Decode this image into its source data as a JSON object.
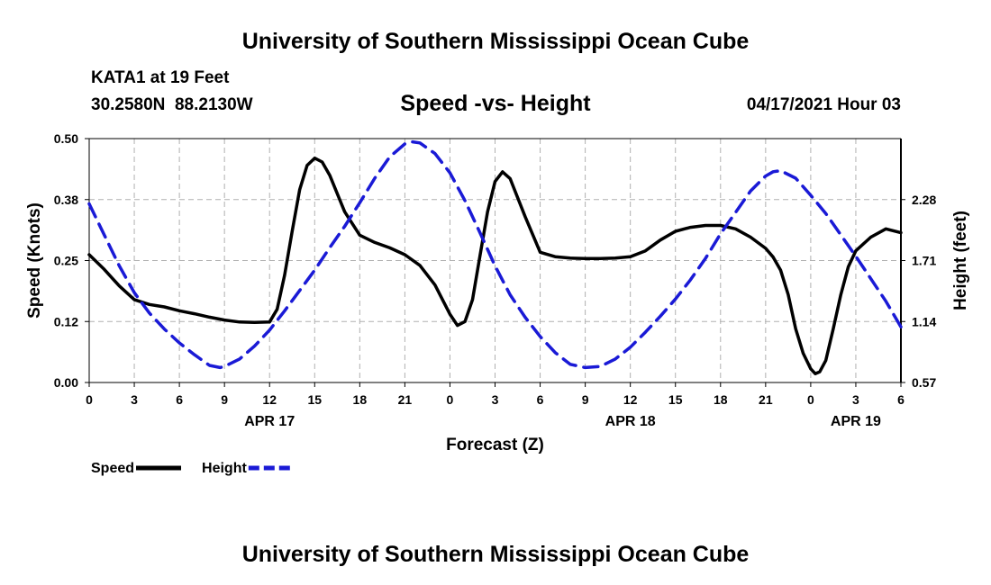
{
  "header": {
    "title": "University of Southern Mississippi Ocean Cube",
    "station": "KATA1 at 19 Feet",
    "coords": "30.2580N  88.2130W",
    "date": "04/17/2021 Hour 03"
  },
  "footer": {
    "title": "University of Southern Mississippi Ocean Cube"
  },
  "chart_data": {
    "type": "line",
    "title": "Speed -vs- Height",
    "xlabel": "Forecast (Z)",
    "ylabel": "Speed (Knots)",
    "y2label": "Height (feet)",
    "xlim": [
      0,
      54
    ],
    "ylim": [
      0,
      0.5
    ],
    "y2lim": [
      0.57,
      2.85
    ],
    "x_ticks": [
      0,
      3,
      6,
      9,
      12,
      15,
      18,
      21,
      24,
      27,
      30,
      33,
      36,
      39,
      42,
      45,
      48,
      51,
      54
    ],
    "x_tick_labels": [
      "0",
      "3",
      "6",
      "9",
      "12",
      "15",
      "18",
      "21",
      "0",
      "3",
      "6",
      "9",
      "12",
      "15",
      "18",
      "21",
      "0",
      "3",
      "6"
    ],
    "y_ticks": [
      0,
      0.125,
      0.25,
      0.375,
      0.5
    ],
    "y_tick_labels": [
      "0.00",
      "0.12",
      "0.25",
      "0.38",
      "0.50"
    ],
    "y2_ticks": [
      0.57,
      1.14,
      1.71,
      2.28
    ],
    "y2_tick_labels": [
      "0.57",
      "1.14",
      "1.71",
      "2.28"
    ],
    "day_labels": [
      {
        "x": 12,
        "label": "APR 17"
      },
      {
        "x": 36,
        "label": "APR 18"
      },
      {
        "x": 51,
        "label": "APR 19"
      }
    ],
    "grid": true,
    "legend_position": "bottom-left",
    "series": [
      {
        "name": "Speed",
        "axis": "left",
        "color": "#000000",
        "dash": "solid",
        "points": [
          [
            0,
            0.262
          ],
          [
            1,
            0.232
          ],
          [
            2,
            0.198
          ],
          [
            3,
            0.17
          ],
          [
            4,
            0.16
          ],
          [
            5,
            0.155
          ],
          [
            6,
            0.147
          ],
          [
            7,
            0.141
          ],
          [
            8,
            0.134
          ],
          [
            9,
            0.128
          ],
          [
            10,
            0.124
          ],
          [
            11,
            0.123
          ],
          [
            12,
            0.124
          ],
          [
            12.5,
            0.15
          ],
          [
            13,
            0.22
          ],
          [
            13.5,
            0.31
          ],
          [
            14,
            0.395
          ],
          [
            14.5,
            0.445
          ],
          [
            15,
            0.46
          ],
          [
            15.5,
            0.452
          ],
          [
            16,
            0.425
          ],
          [
            17,
            0.35
          ],
          [
            18,
            0.302
          ],
          [
            19,
            0.287
          ],
          [
            20,
            0.276
          ],
          [
            21,
            0.262
          ],
          [
            22,
            0.24
          ],
          [
            23,
            0.2
          ],
          [
            24,
            0.14
          ],
          [
            24.5,
            0.117
          ],
          [
            25,
            0.125
          ],
          [
            25.5,
            0.17
          ],
          [
            26,
            0.26
          ],
          [
            26.5,
            0.35
          ],
          [
            27,
            0.412
          ],
          [
            27.5,
            0.432
          ],
          [
            28,
            0.418
          ],
          [
            29,
            0.34
          ],
          [
            30,
            0.267
          ],
          [
            31,
            0.258
          ],
          [
            32,
            0.255
          ],
          [
            33,
            0.254
          ],
          [
            34,
            0.254
          ],
          [
            35,
            0.255
          ],
          [
            36,
            0.258
          ],
          [
            37,
            0.27
          ],
          [
            38,
            0.292
          ],
          [
            39,
            0.31
          ],
          [
            40,
            0.318
          ],
          [
            41,
            0.322
          ],
          [
            42,
            0.322
          ],
          [
            43,
            0.315
          ],
          [
            44,
            0.298
          ],
          [
            45,
            0.275
          ],
          [
            45.5,
            0.257
          ],
          [
            46,
            0.23
          ],
          [
            46.5,
            0.18
          ],
          [
            47,
            0.11
          ],
          [
            47.5,
            0.06
          ],
          [
            48,
            0.028
          ],
          [
            48.3,
            0.018
          ],
          [
            48.6,
            0.022
          ],
          [
            49,
            0.045
          ],
          [
            49.5,
            0.11
          ],
          [
            50,
            0.18
          ],
          [
            50.5,
            0.237
          ],
          [
            51,
            0.27
          ],
          [
            52,
            0.298
          ],
          [
            53,
            0.315
          ],
          [
            54,
            0.307
          ]
        ]
      },
      {
        "name": "Height",
        "axis": "right",
        "color": "#1a1ad6",
        "dash": "dashed",
        "points": [
          [
            0,
            2.24
          ],
          [
            1,
            1.95
          ],
          [
            2,
            1.66
          ],
          [
            3,
            1.41
          ],
          [
            4,
            1.22
          ],
          [
            5,
            1.07
          ],
          [
            6,
            0.94
          ],
          [
            7,
            0.83
          ],
          [
            8,
            0.73
          ],
          [
            8.7,
            0.71
          ],
          [
            9,
            0.72
          ],
          [
            10,
            0.79
          ],
          [
            11,
            0.91
          ],
          [
            12,
            1.06
          ],
          [
            13,
            1.24
          ],
          [
            14,
            1.43
          ],
          [
            15,
            1.62
          ],
          [
            16,
            1.83
          ],
          [
            17,
            2.03
          ],
          [
            18,
            2.25
          ],
          [
            19,
            2.48
          ],
          [
            20,
            2.68
          ],
          [
            21,
            2.8
          ],
          [
            21.5,
            2.82
          ],
          [
            22,
            2.81
          ],
          [
            23,
            2.71
          ],
          [
            24,
            2.53
          ],
          [
            25,
            2.27
          ],
          [
            26,
            1.97
          ],
          [
            27,
            1.66
          ],
          [
            28,
            1.39
          ],
          [
            29,
            1.18
          ],
          [
            30,
            1.0
          ],
          [
            31,
            0.85
          ],
          [
            32,
            0.74
          ],
          [
            33,
            0.71
          ],
          [
            34,
            0.72
          ],
          [
            35,
            0.79
          ],
          [
            36,
            0.9
          ],
          [
            37,
            1.04
          ],
          [
            38,
            1.19
          ],
          [
            39,
            1.35
          ],
          [
            40,
            1.53
          ],
          [
            41,
            1.73
          ],
          [
            42,
            1.96
          ],
          [
            43,
            2.16
          ],
          [
            44,
            2.36
          ],
          [
            45,
            2.5
          ],
          [
            45.5,
            2.54
          ],
          [
            46,
            2.55
          ],
          [
            47,
            2.48
          ],
          [
            48,
            2.32
          ],
          [
            49,
            2.15
          ],
          [
            50,
            1.95
          ],
          [
            51,
            1.75
          ],
          [
            52,
            1.54
          ],
          [
            53,
            1.33
          ],
          [
            54,
            1.09
          ]
        ]
      }
    ]
  }
}
